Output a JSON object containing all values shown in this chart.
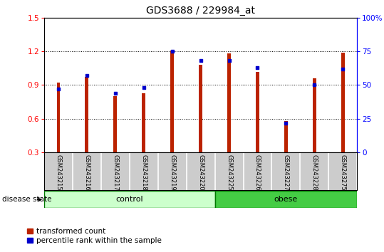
{
  "title": "GDS3688 / 229984_at",
  "samples": [
    "GSM243215",
    "GSM243216",
    "GSM243217",
    "GSM243218",
    "GSM243219",
    "GSM243220",
    "GSM243225",
    "GSM243226",
    "GSM243227",
    "GSM243228",
    "GSM243275"
  ],
  "red_values": [
    0.92,
    0.97,
    0.8,
    0.83,
    1.21,
    1.08,
    1.18,
    1.02,
    0.58,
    0.96,
    1.19
  ],
  "blue_values": [
    47,
    57,
    44,
    48,
    75,
    68,
    68,
    63,
    22,
    50,
    62
  ],
  "ylim_left": [
    0.3,
    1.5
  ],
  "ylim_right": [
    0,
    100
  ],
  "yticks_left": [
    0.3,
    0.6,
    0.9,
    1.2,
    1.5
  ],
  "yticks_right": [
    0,
    25,
    50,
    75,
    100
  ],
  "ytick_labels_right": [
    "0",
    "25",
    "50",
    "75",
    "100%"
  ],
  "control_count": 6,
  "obese_count": 5,
  "control_label": "control",
  "obese_label": "obese",
  "disease_state_label": "disease state",
  "legend_red": "transformed count",
  "legend_blue": "percentile rank within the sample",
  "bar_color": "#bb2200",
  "dot_color": "#0000cc",
  "control_color": "#ccffcc",
  "obese_color": "#44cc44",
  "bar_width": 0.12,
  "plot_bg_color": "#ffffff",
  "label_area_color": "#cccccc",
  "title_fontsize": 10,
  "tick_fontsize": 7.5,
  "label_fontsize": 7.5,
  "xlim": [
    -0.5,
    10.5
  ]
}
